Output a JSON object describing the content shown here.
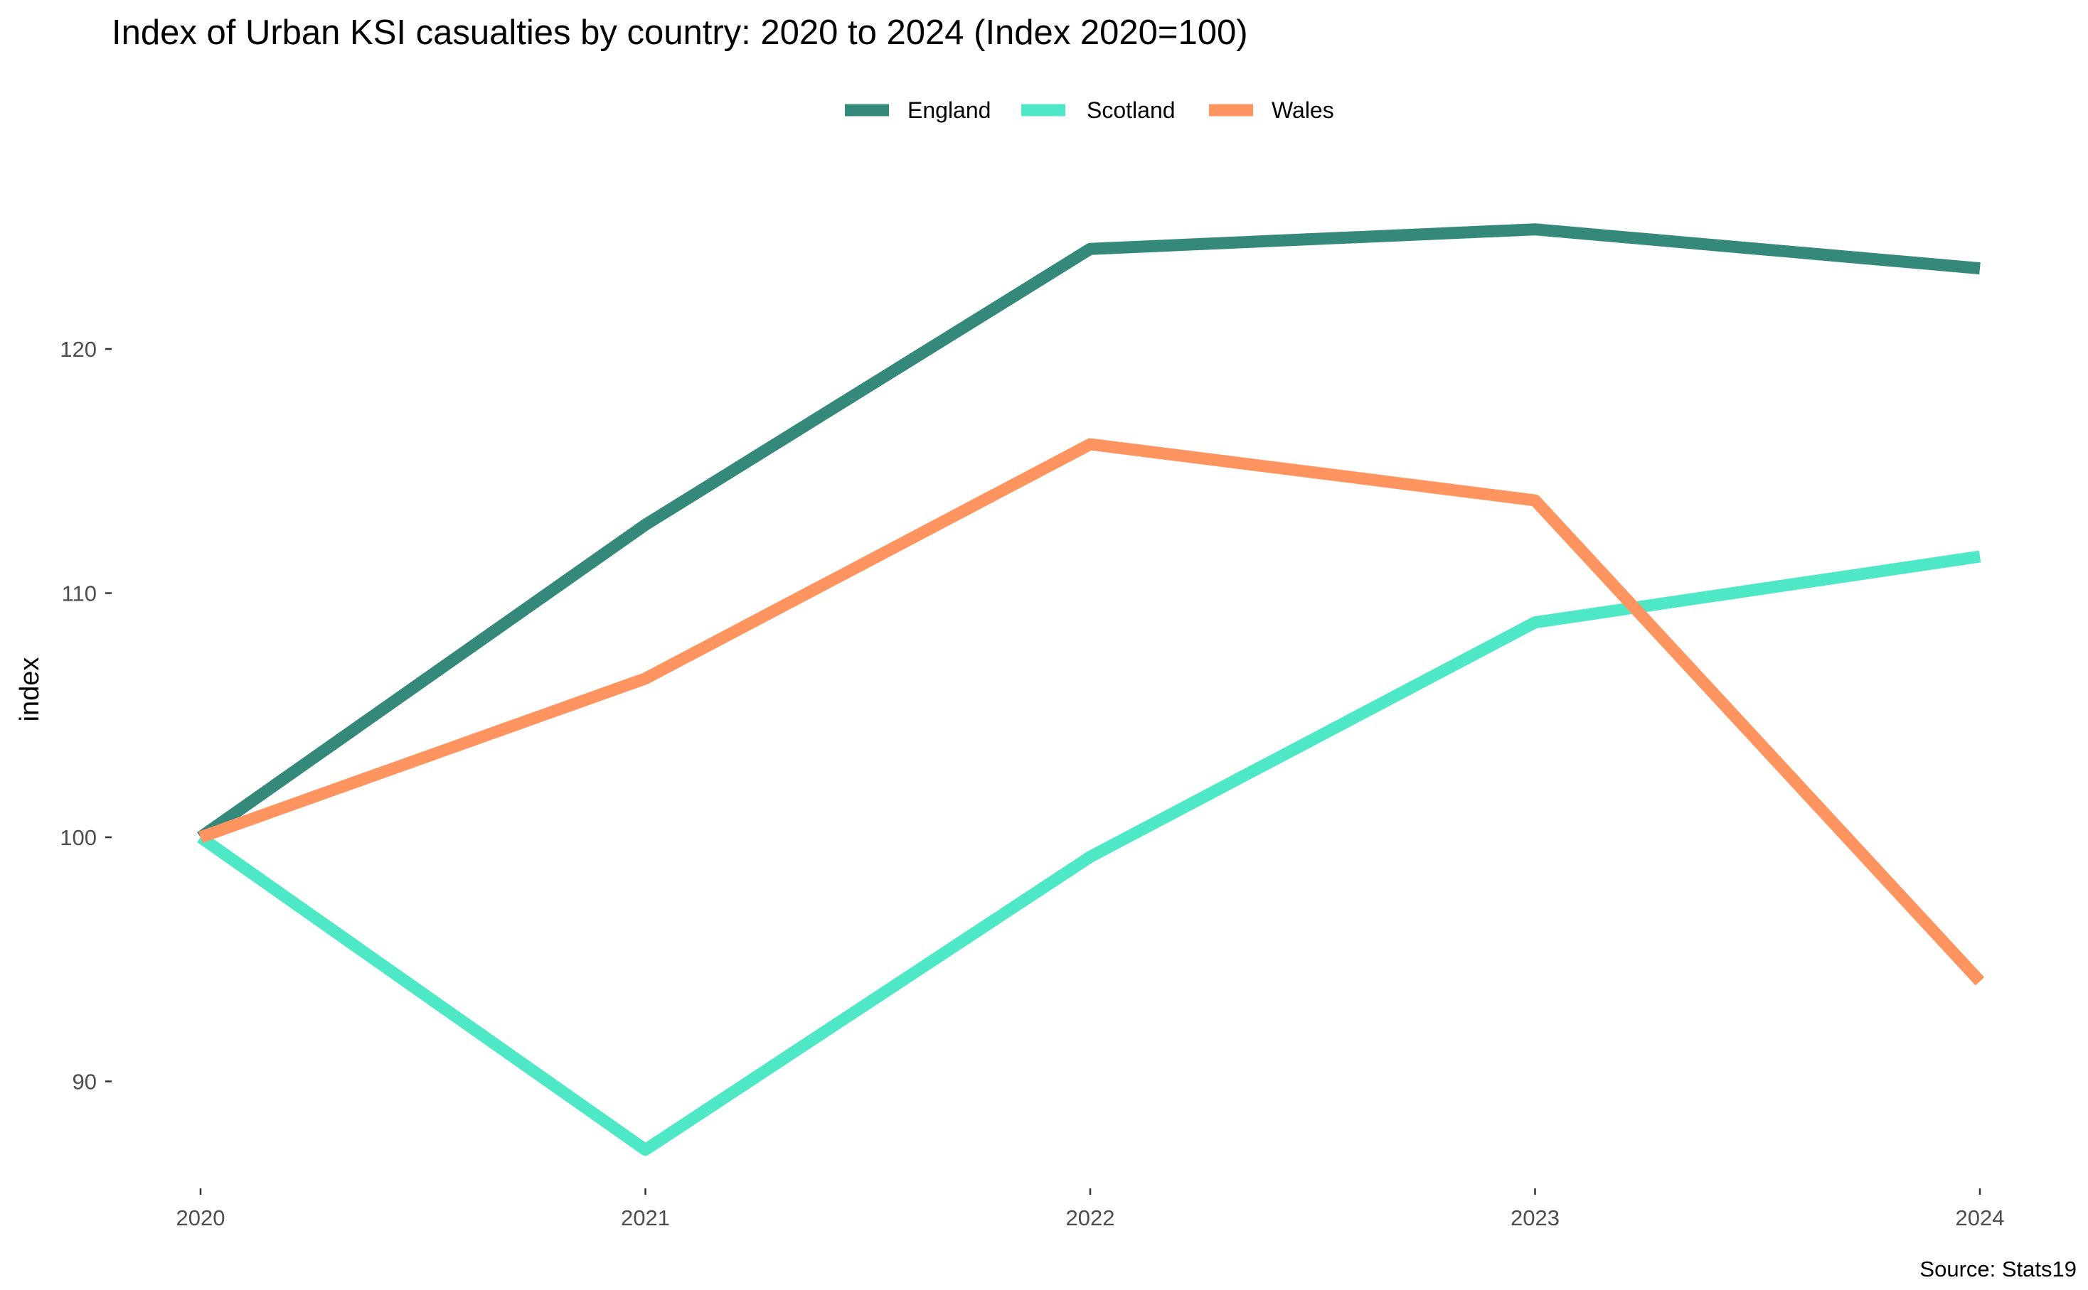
{
  "chart_data": {
    "type": "line",
    "title": "Index of Urban KSI casualties by country: 2020 to 2024 (Index 2020=100)",
    "xlabel": "",
    "ylabel": "index",
    "caption": "Source: Stats19",
    "x": [
      2020,
      2021,
      2022,
      2023,
      2024
    ],
    "x_tick_labels": [
      "2020",
      "2021",
      "2022",
      "2023",
      "2024"
    ],
    "y_ticks": [
      90,
      100,
      110,
      120
    ],
    "y_tick_labels": [
      "90",
      "100",
      "110",
      "120"
    ],
    "ylim": [
      85.7,
      126.4
    ],
    "grid": false,
    "legend_position": "top",
    "series": [
      {
        "name": "England",
        "color": "#35897a",
        "values": [
          100,
          112.8,
          124.1,
          124.9,
          123.3
        ]
      },
      {
        "name": "Scotland",
        "color": "#4ee8c6",
        "values": [
          100,
          87.2,
          99.2,
          108.8,
          111.5
        ]
      },
      {
        "name": "Wales",
        "color": "#fe9560",
        "values": [
          100,
          106.5,
          116.1,
          113.8,
          94.1
        ]
      }
    ]
  }
}
